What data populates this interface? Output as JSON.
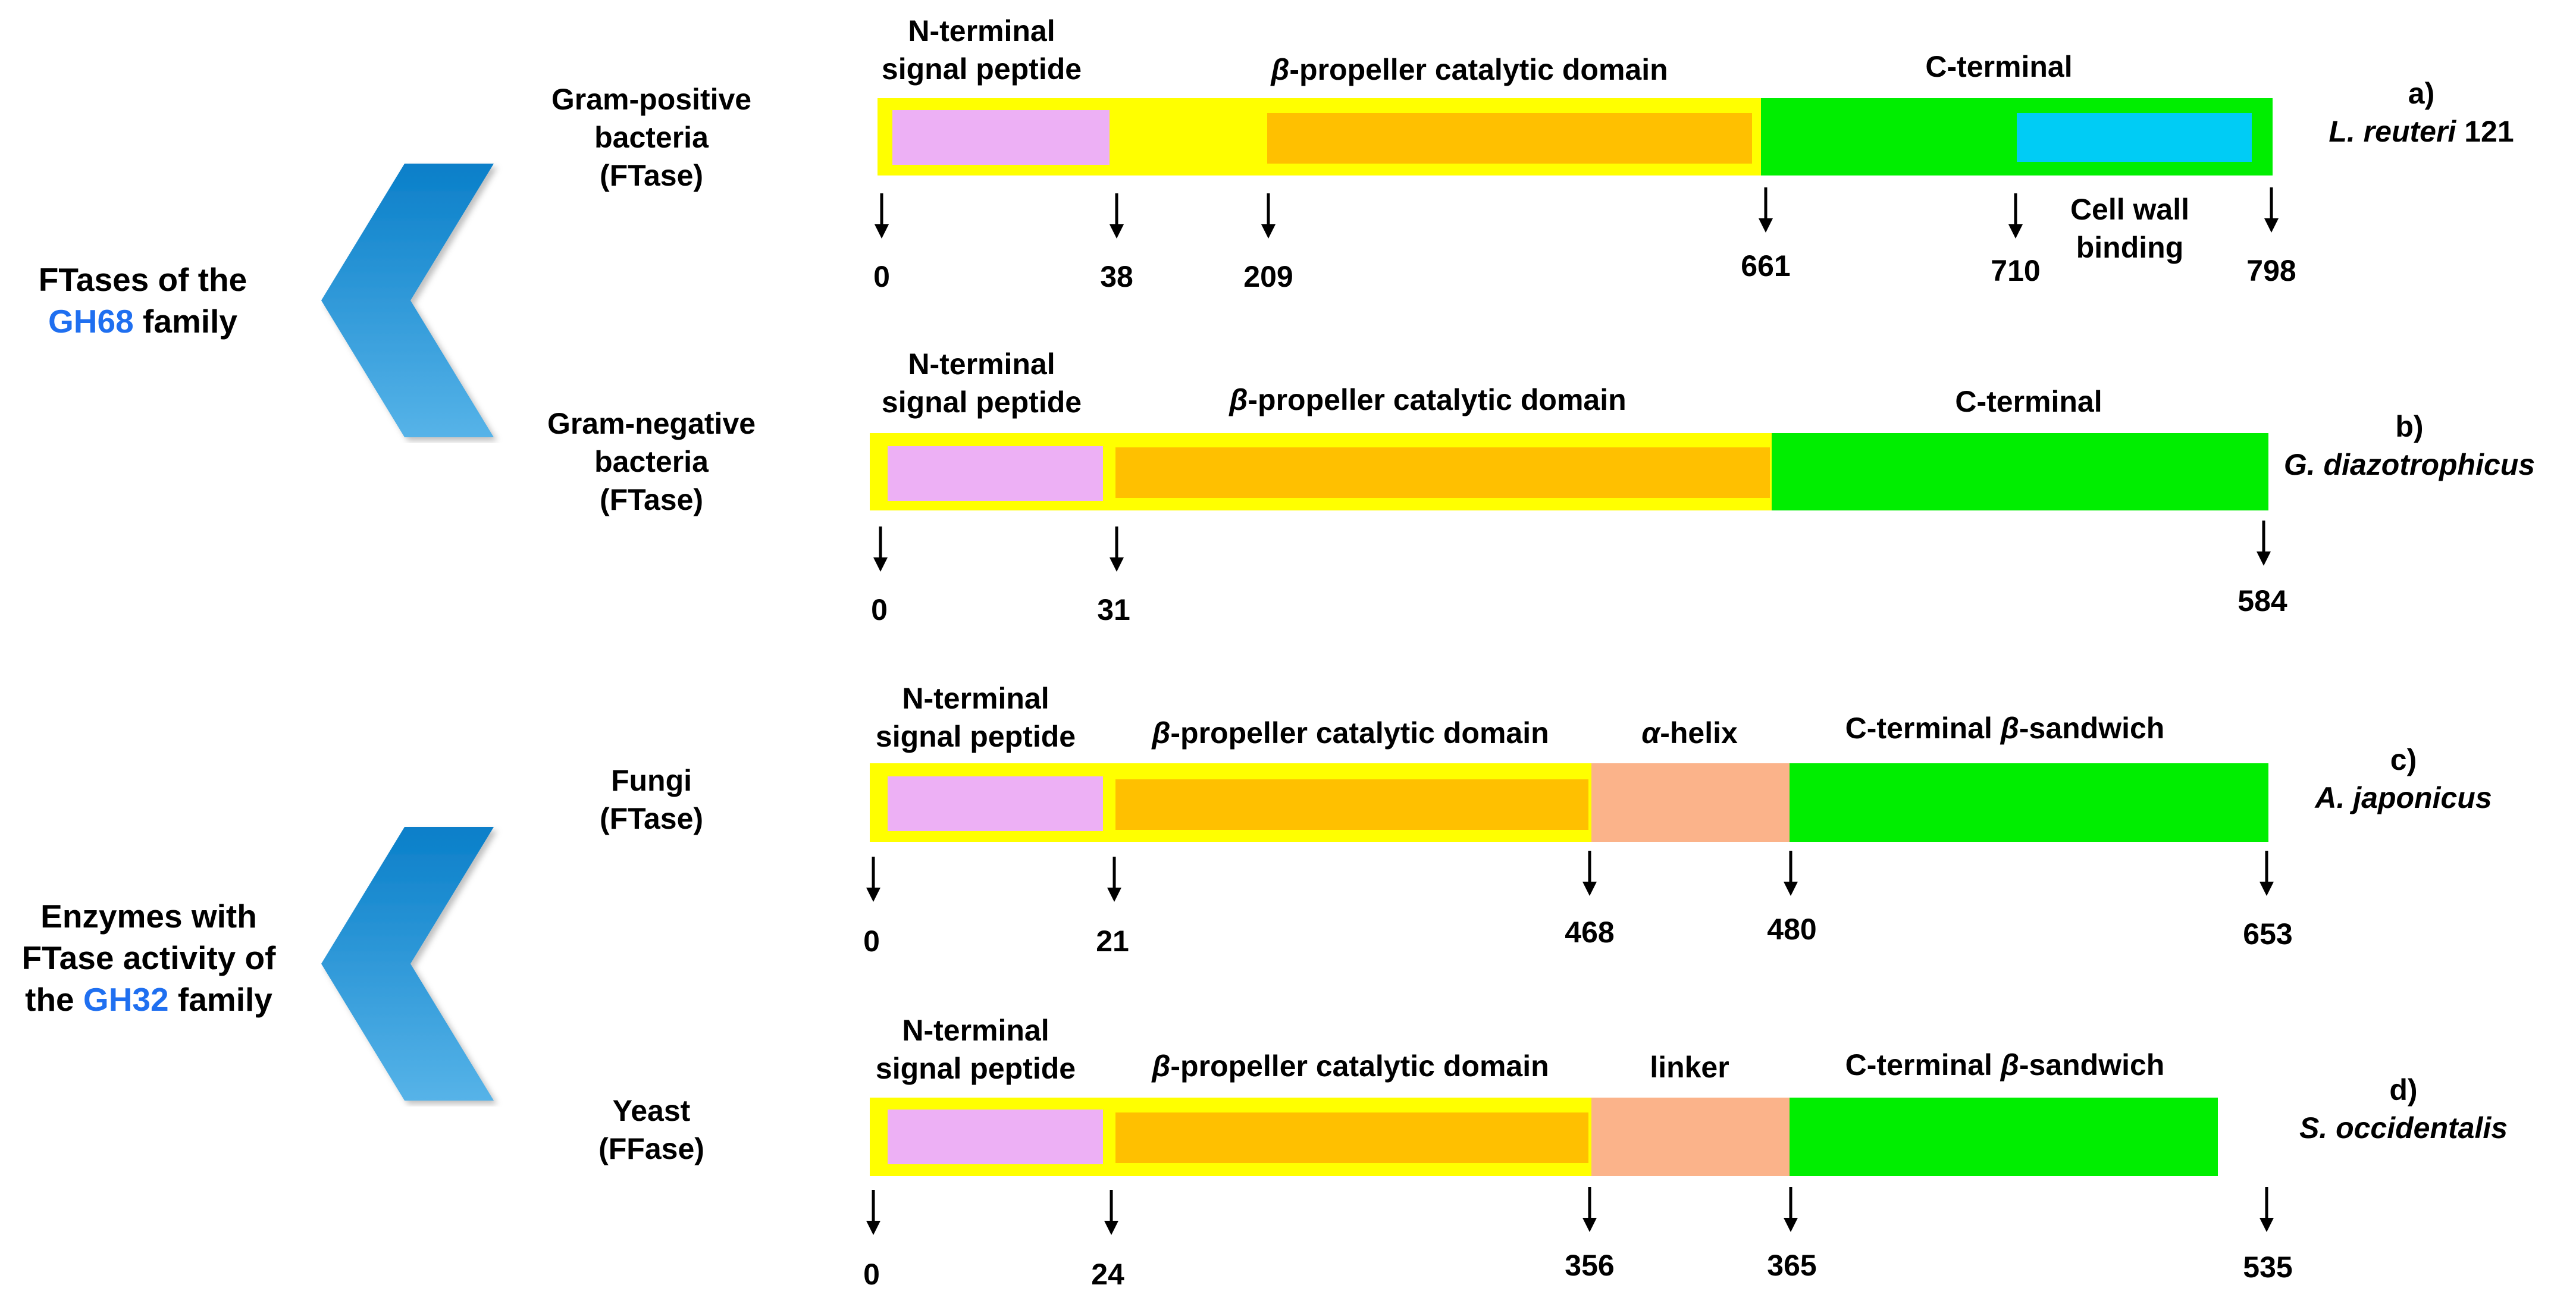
{
  "families": [
    {
      "pre": "FTases of the",
      "blue": "GH68",
      "post": "family"
    },
    {
      "pre": "Enzymes with",
      "mid": "FTase activity of",
      "pre2": "the",
      "blue": "GH32",
      "post": "family"
    }
  ],
  "rows": [
    {
      "organism_type": [
        "Gram-positive",
        "bacteria",
        "(FTase)"
      ],
      "letter": "a)",
      "species": "L. reuteri",
      "species_suffix": " 121",
      "domain_labels": {
        "nterm": [
          "N-terminal",
          "signal peptide"
        ],
        "catalytic_prefix": "β",
        "catalytic_rest": "-propeller catalytic domain",
        "cterm": "C-terminal",
        "cell_wall": [
          "Cell wall",
          "binding"
        ]
      },
      "positions": [
        "0",
        "38",
        "209",
        "661",
        "710",
        "798"
      ]
    },
    {
      "organism_type": [
        "Gram-negative",
        "bacteria",
        "(FTase)"
      ],
      "letter": "b)",
      "species": "G. diazotrophicus",
      "domain_labels": {
        "nterm": [
          "N-terminal",
          "signal peptide"
        ],
        "catalytic_prefix": "β",
        "catalytic_rest": "-propeller catalytic domain",
        "cterm": "C-terminal"
      },
      "positions": [
        "0",
        "31",
        "584"
      ]
    },
    {
      "organism_type": [
        "Fungi",
        "(FTase)"
      ],
      "letter": "c)",
      "species": "A. japonicus",
      "domain_labels": {
        "nterm": [
          "N-terminal",
          "signal peptide"
        ],
        "catalytic_prefix": "β",
        "catalytic_rest": "-propeller catalytic domain",
        "middle_prefix": "α",
        "middle_rest": "-helix",
        "cterm_pre": "C-terminal ",
        "cterm_greek": "β",
        "cterm_post": "-sandwich"
      },
      "positions": [
        "0",
        "21",
        "468",
        "480",
        "653"
      ]
    },
    {
      "organism_type": [
        "Yeast",
        "(FFase)"
      ],
      "letter": "d)",
      "species": "S. occidentalis",
      "domain_labels": {
        "nterm": [
          "N-terminal",
          "signal peptide"
        ],
        "catalytic_prefix": "β",
        "catalytic_rest": "-propeller catalytic domain",
        "middle": "linker",
        "cterm_pre": "C-terminal ",
        "cterm_greek": "β",
        "cterm_post": "-sandwich"
      },
      "positions": [
        "0",
        "24",
        "356",
        "365",
        "535"
      ]
    }
  ],
  "colors": {
    "frame": "#ffff00",
    "signal_peptide": "#edb0f5",
    "catalytic": "#ffc000",
    "c_terminal": "#00ee00",
    "cell_wall_binding": "#00ccf5",
    "helix_linker": "#fbb38a",
    "chevron": "#1a8fd6",
    "family_highlight": "#1f6ff0"
  }
}
